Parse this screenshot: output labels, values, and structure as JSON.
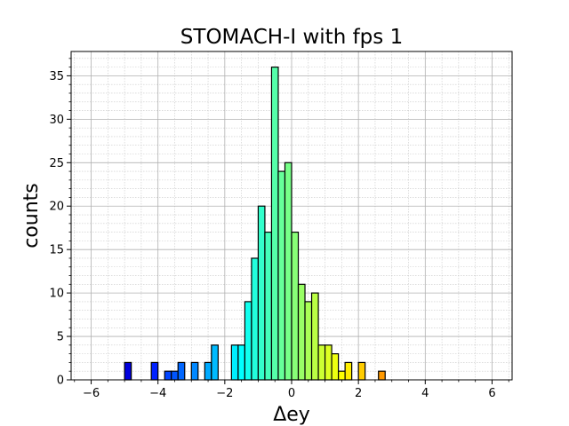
{
  "chart_data": {
    "type": "bar",
    "title": "STOMACH-I with fps 1",
    "xlabel": "Δey",
    "ylabel": "counts",
    "xlim": [
      -6.6,
      6.6
    ],
    "ylim": [
      0,
      37.8
    ],
    "xticks": [
      -6,
      -4,
      -2,
      0,
      2,
      4,
      6
    ],
    "xtick_labels": [
      "−6",
      "−4",
      "−2",
      "0",
      "2",
      "4",
      "6"
    ],
    "yticks": [
      0,
      5,
      10,
      15,
      20,
      25,
      30,
      35
    ],
    "ytick_labels": [
      "0",
      "5",
      "10",
      "15",
      "20",
      "25",
      "30",
      "35"
    ],
    "grid": true,
    "minor_grid": true,
    "colormap": "jet",
    "bin_width": 0.2,
    "bin_edges": [
      -6.0,
      -5.8,
      -5.6,
      -5.4,
      -5.2,
      -5.0,
      -4.8,
      -4.6,
      -4.4,
      -4.2,
      -4.0,
      -3.8,
      -3.6,
      -3.4,
      -3.2,
      -3.0,
      -2.8,
      -2.6,
      -2.4,
      -2.2,
      -2.0,
      -1.8,
      -1.6,
      -1.4,
      -1.2,
      -1.0,
      -0.8,
      -0.6,
      -0.4,
      -0.2,
      0.0,
      0.2,
      0.4,
      0.6,
      0.8,
      1.0,
      1.2,
      1.4,
      1.6,
      1.8,
      2.0,
      2.2,
      2.4,
      2.6,
      2.8,
      3.0,
      3.2,
      3.4,
      3.6,
      3.8,
      4.0,
      4.2,
      4.4,
      4.6,
      4.8,
      5.0,
      5.2,
      5.4,
      5.6,
      5.8,
      6.0
    ],
    "counts": [
      0,
      0,
      0,
      0,
      0,
      2,
      0,
      0,
      0,
      2,
      0,
      1,
      1,
      2,
      0,
      2,
      0,
      2,
      4,
      0,
      0,
      4,
      4,
      9,
      14,
      20,
      17,
      36,
      24,
      25,
      17,
      11,
      9,
      10,
      4,
      4,
      3,
      1,
      2,
      0,
      2,
      0,
      0,
      1,
      0,
      0,
      0,
      0,
      0,
      0,
      0,
      0,
      0,
      0,
      0,
      0,
      0,
      0,
      0,
      0
    ]
  }
}
